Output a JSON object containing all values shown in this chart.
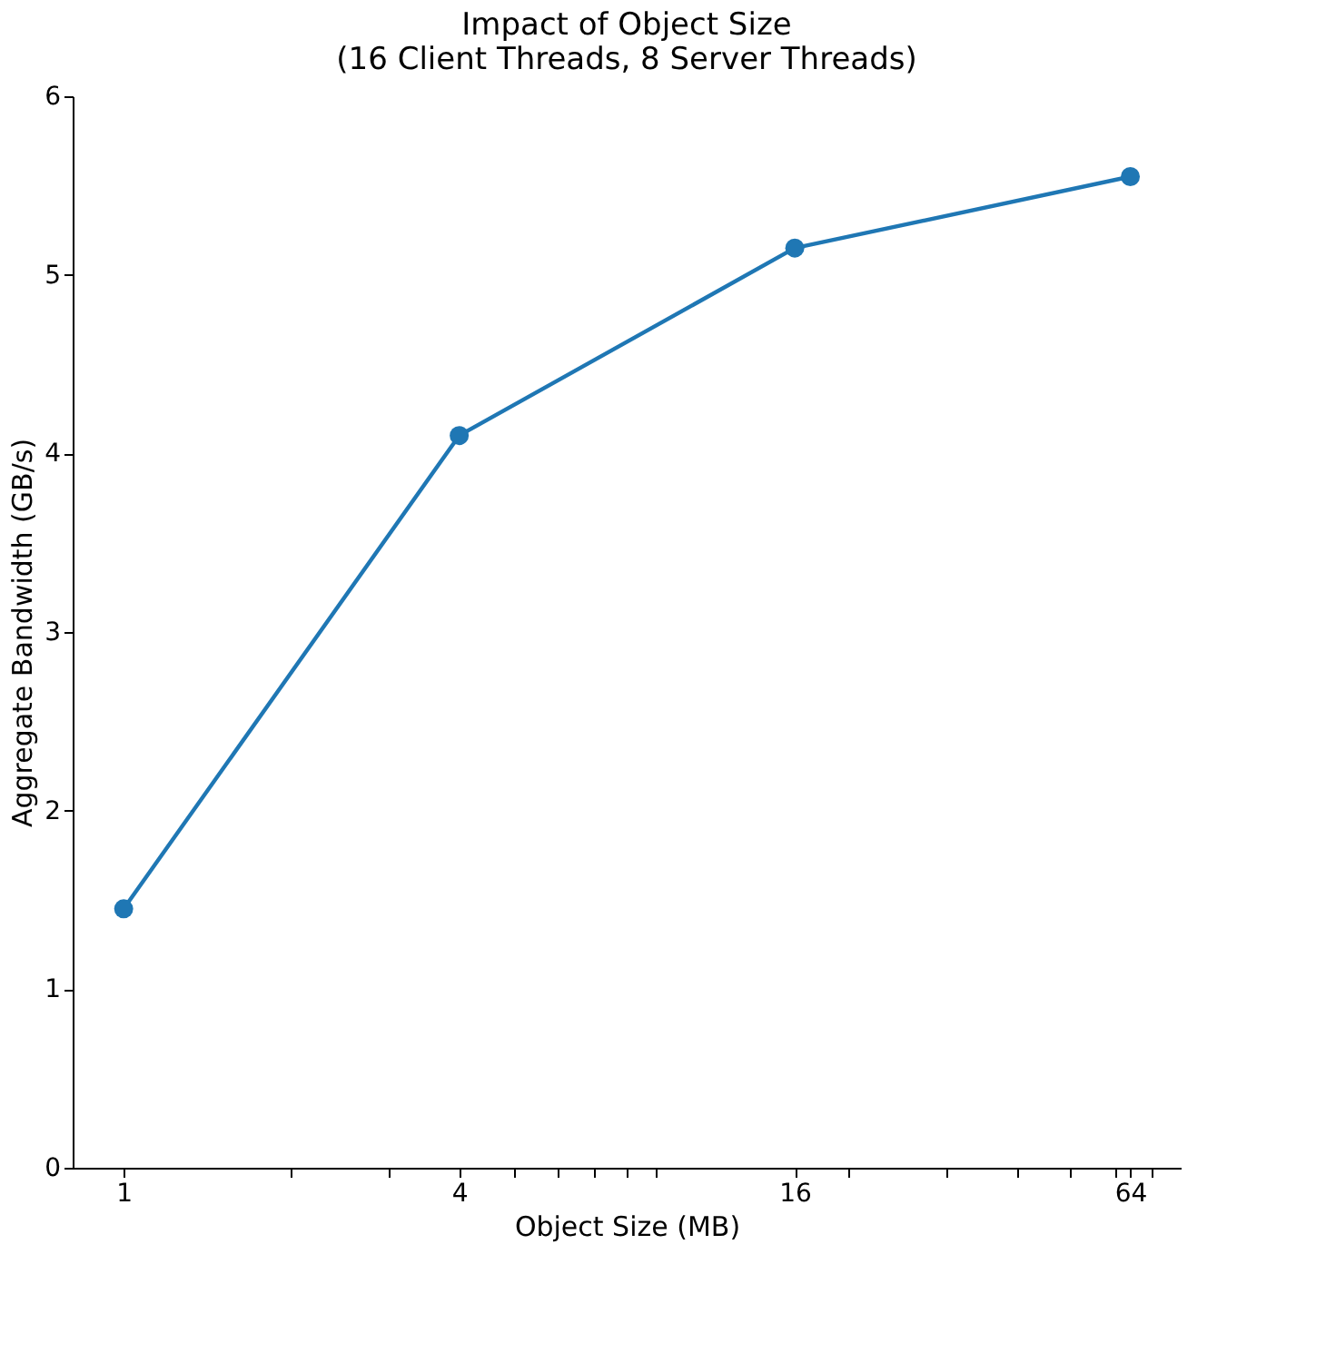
{
  "chart_data": {
    "type": "line",
    "title": "Impact of Object Size\n(16 Client Threads, 8 Server Threads)",
    "xlabel": "Object Size (MB)",
    "ylabel": "Aggregate Bandwidth (GB/s)",
    "x": [
      1,
      4,
      16,
      64
    ],
    "series": [
      {
        "color": "#1f77b4",
        "values": [
          1.45,
          4.1,
          5.15,
          5.55
        ]
      }
    ],
    "log": "x",
    "xlim": [
      0.81,
      78.8
    ],
    "xticks": [
      1,
      {
        "value": 2,
        "label": null
      },
      {
        "value": 3,
        "label": null
      },
      4,
      {
        "value": 5,
        "label": null
      },
      {
        "value": 6,
        "label": null
      },
      {
        "value": 7,
        "label": null
      },
      {
        "value": 8,
        "label": null
      },
      {
        "value": 9,
        "label": null
      },
      16,
      {
        "value": 20,
        "label": null
      },
      {
        "value": 30,
        "label": null
      },
      {
        "value": 40,
        "label": null
      },
      {
        "value": 50,
        "label": null
      },
      {
        "value": 60,
        "label": null
      },
      64,
      {
        "value": 70,
        "label": null
      }
    ],
    "ylim": [
      0,
      6
    ],
    "yticks": [
      0,
      1,
      2,
      3,
      4,
      5,
      6
    ],
    "grid": false,
    "marker": "circle",
    "line_style": "solid"
  }
}
